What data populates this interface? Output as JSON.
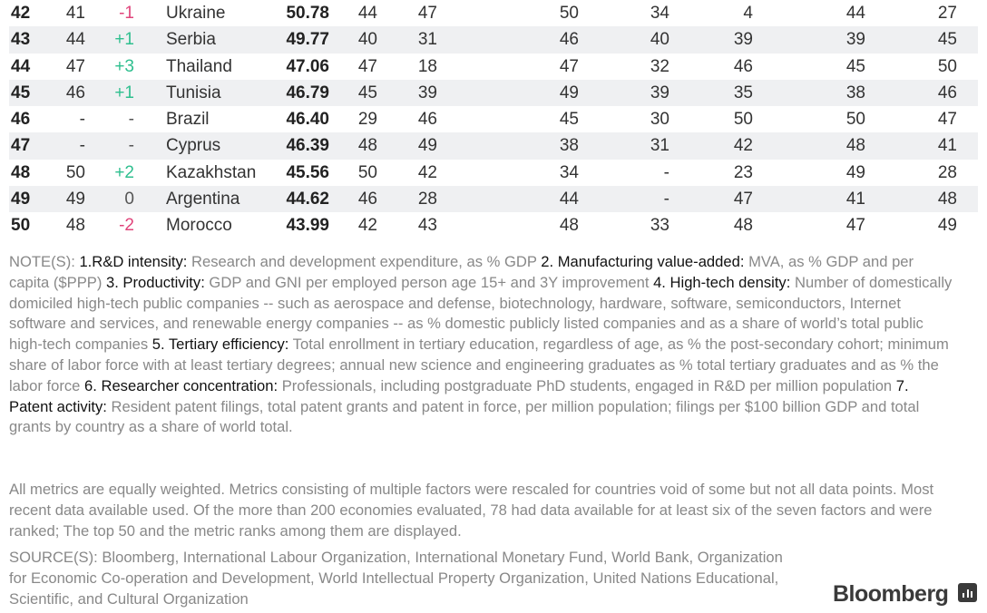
{
  "rows": [
    {
      "rank": "42",
      "prev": "41",
      "change": "-1",
      "country": "Ukraine",
      "score": "50.78",
      "metrics": [
        "44",
        "47",
        "50",
        "34",
        "4",
        "44",
        "27"
      ]
    },
    {
      "rank": "43",
      "prev": "44",
      "change": "+1",
      "country": "Serbia",
      "score": "49.77",
      "metrics": [
        "40",
        "31",
        "46",
        "40",
        "39",
        "39",
        "45"
      ]
    },
    {
      "rank": "44",
      "prev": "47",
      "change": "+3",
      "country": "Thailand",
      "score": "47.06",
      "metrics": [
        "47",
        "18",
        "47",
        "32",
        "46",
        "45",
        "50"
      ]
    },
    {
      "rank": "45",
      "prev": "46",
      "change": "+1",
      "country": "Tunisia",
      "score": "46.79",
      "metrics": [
        "45",
        "39",
        "49",
        "39",
        "35",
        "38",
        "46"
      ]
    },
    {
      "rank": "46",
      "prev": "-",
      "change": "-",
      "country": "Brazil",
      "score": "46.40",
      "metrics": [
        "29",
        "46",
        "45",
        "30",
        "50",
        "50",
        "47"
      ]
    },
    {
      "rank": "47",
      "prev": "-",
      "change": "-",
      "country": "Cyprus",
      "score": "46.39",
      "metrics": [
        "48",
        "49",
        "38",
        "31",
        "42",
        "48",
        "41"
      ]
    },
    {
      "rank": "48",
      "prev": "50",
      "change": "+2",
      "country": "Kazakhstan",
      "score": "45.56",
      "metrics": [
        "50",
        "42",
        "34",
        "-",
        "23",
        "49",
        "28"
      ]
    },
    {
      "rank": "49",
      "prev": "49",
      "change": "0",
      "country": "Argentina",
      "score": "44.62",
      "metrics": [
        "46",
        "28",
        "44",
        "-",
        "47",
        "41",
        "48"
      ]
    },
    {
      "rank": "50",
      "prev": "48",
      "change": "-2",
      "country": "Morocco",
      "score": "43.99",
      "metrics": [
        "42",
        "43",
        "48",
        "33",
        "48",
        "47",
        "49"
      ]
    }
  ],
  "colors": {
    "up": "#2fbf8f",
    "down": "#e0457b",
    "stripe": "#eff0f2"
  },
  "notes": {
    "prefix": "NOTE(S): ",
    "items": [
      {
        "label": "1.R&D intensity:",
        "text": " Research and development expenditure, as % GDP "
      },
      {
        "label": "2. Manufacturing value-added:",
        "text": " MVA, as % GDP and per capita ($PPP) "
      },
      {
        "label": "3. Productivity:",
        "text": " GDP and GNI per employed person age 15+ and 3Y improvement "
      },
      {
        "label": "4. High-tech density:",
        "text": " Number of domestically domiciled high-tech public companies -- such as aerospace and defense, biotechnology, hardware, software, semiconductors, Internet software and services, and renewable energy companies -- as % domestic publicly listed companies and as a share of world’s total public high-tech companies "
      },
      {
        "label": "5. Tertiary efficiency:",
        "text": " Total enrollment in tertiary education, regardless of age, as % the post-secondary cohort; minimum share of labor force with at least tertiary degrees; annual new science and engineering graduates as % total tertiary graduates and as % the labor force "
      },
      {
        "label": "6. Researcher concentration:",
        "text": " Professionals, including postgraduate PhD students, engaged in R&D per million population "
      },
      {
        "label": "7. Patent activity:",
        "text": " Resident patent filings, total patent grants and patent in force, per million population; filings per $100 billion GDP and total grants by country as a share of world total."
      }
    ]
  },
  "methodology": "All metrics are equally weighted. Metrics consisting of multiple factors were rescaled for countries void of some but not all data points. Most recent data available used. Of the more than 200 economies evaluated, 78 had data available for at least six of the seven factors and were ranked; The top 50 and the metric ranks among them are displayed.",
  "sources": "SOURCE(S): Bloomberg, International Labour Organization, International Monetary Fund, World Bank, Organization for Economic Co-operation and Development, World Intellectual Property Organization, United Nations Educational, Scientific, and Cultural Organization",
  "logo": {
    "text": "Bloomberg",
    "icon": "bloomberg-chart-icon"
  }
}
